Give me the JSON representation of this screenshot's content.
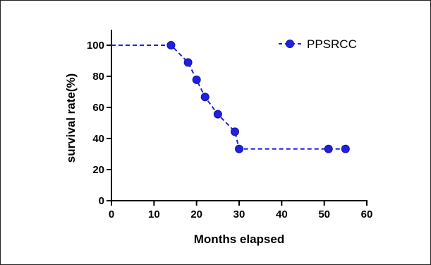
{
  "chart_data": {
    "type": "line",
    "xlabel": "Months elapsed",
    "ylabel": "survival rate(%)",
    "xlim": [
      0,
      60
    ],
    "ylim": [
      0,
      110
    ],
    "x_ticks": [
      0,
      10,
      20,
      30,
      40,
      50,
      60
    ],
    "y_ticks": [
      0,
      20,
      40,
      60,
      80,
      100
    ],
    "grid": false,
    "legend_position": "top-right",
    "series": [
      {
        "name": "PPSRCC",
        "color": "#2020e0",
        "line_style": "dashed",
        "step": true,
        "x": [
          0,
          14,
          18,
          20,
          22,
          25,
          29,
          30,
          51,
          55
        ],
        "y": [
          100,
          100,
          88.9,
          77.8,
          66.7,
          55.6,
          44.4,
          33.3,
          33.3,
          33.3
        ],
        "markers": [
          {
            "x": 14,
            "y": 100
          },
          {
            "x": 18,
            "y": 88.9
          },
          {
            "x": 20,
            "y": 77.8
          },
          {
            "x": 22,
            "y": 66.7
          },
          {
            "x": 25,
            "y": 55.6
          },
          {
            "x": 29,
            "y": 44.4
          },
          {
            "x": 30,
            "y": 33.3
          },
          {
            "x": 51,
            "y": 33.3
          },
          {
            "x": 55,
            "y": 33.3
          }
        ]
      }
    ]
  }
}
